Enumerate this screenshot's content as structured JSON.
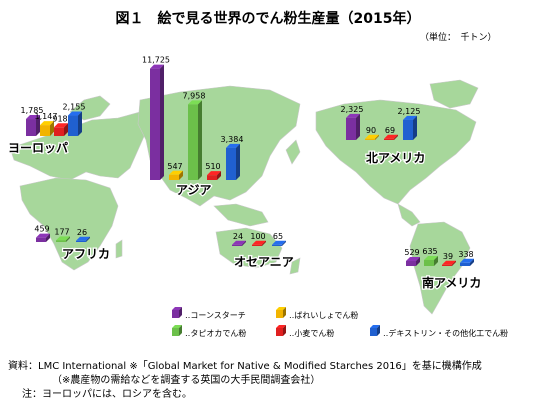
{
  "title": "図１　絵で見る世界のでん粉生産量（2015年）",
  "unit_label": "（単位：　千トン）",
  "colors": {
    "corn": "#7b2fa0",
    "potato": "#f2b400",
    "tapioca": "#6cc04a",
    "wheat": "#e02020",
    "dextrin": "#2060d0",
    "map": "#a7d79b",
    "bg": "#ffffff"
  },
  "chart_data": {
    "type": "bar",
    "categories": [
      "ヨーロッパ",
      "アジア",
      "アフリカ",
      "オセアニア",
      "北アメリカ",
      "南アメリカ"
    ],
    "series": [
      {
        "name": "コーンスターチ",
        "values": [
          1785,
          11725,
          459,
          24,
          2325,
          529
        ]
      },
      {
        "name": "ばれいしょでん粉",
        "values": [
          1147,
          547,
          0,
          0,
          90,
          0
        ]
      },
      {
        "name": "タピオカでん粉",
        "values": [
          0,
          7958,
          177,
          0,
          0,
          635
        ]
      },
      {
        "name": "小麦でん粉",
        "values": [
          918,
          510,
          0,
          100,
          69,
          39
        ]
      },
      {
        "name": "デキストリン・その他化工でん粉",
        "values": [
          2155,
          3384,
          26,
          65,
          2125,
          338
        ]
      }
    ]
  },
  "regions": [
    "ヨーロッパ",
    "アジア",
    "アフリカ",
    "オセアニア",
    "北アメリカ",
    "南アメリカ"
  ],
  "legend": {
    "corn": "‥コーンスターチ",
    "potato": "‥ばれいしょでん粉",
    "tapioca": "‥タピオカでん粉",
    "wheat": "‥小麦でん粉",
    "dextrin": "‥デキストリン・その他化工でん粉"
  },
  "notes": {
    "source": "資料：LMC International ※「Global Market for Native & Modified Starches 2016」を基に機構作成",
    "source_note": "（※農産物の需給などを調査する英国の大手民間調査会社）",
    "note": "注：ヨーロッパには、ロシアを含む。"
  }
}
